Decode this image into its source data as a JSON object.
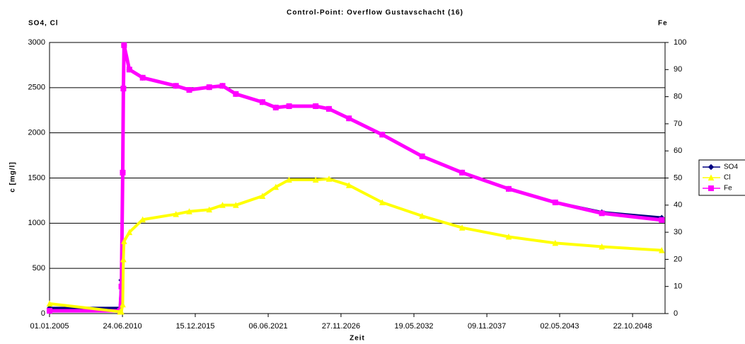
{
  "chart_data": {
    "type": "line",
    "title": "Control-Point: Overflow Gustavschacht (16)",
    "y_axis_title": "SO4, Cl",
    "y2_axis_title": "Fe",
    "y_label": "c [mg/l]",
    "x_label": "Zeit",
    "x": [
      2005,
      2010.3,
      2010.4,
      2010.5,
      2010.55,
      2010.6,
      2011,
      2012,
      2014.5,
      2015.5,
      2017,
      2018,
      2019,
      2021,
      2022,
      2023,
      2025,
      2026,
      2027.5,
      2030,
      2033,
      2036,
      2039.5,
      2043,
      2046.5,
      2051
    ],
    "series": [
      {
        "name": "SO4",
        "color": "#000080",
        "marker": "diamond",
        "values": [
          60,
          60,
          370,
          1560,
          2500,
          2970,
          2700,
          2610,
          2520,
          2475,
          2505,
          2520,
          2430,
          2340,
          2280,
          2295,
          2295,
          2265,
          2160,
          1980,
          1740,
          1560,
          1380,
          1230,
          1120,
          1060
        ]
      },
      {
        "name": "Cl",
        "color": "#ffff00",
        "marker": "triangle",
        "values": [
          110,
          20,
          20,
          100,
          600,
          800,
          900,
          1040,
          1100,
          1130,
          1150,
          1200,
          1200,
          1300,
          1400,
          1480,
          1480,
          1490,
          1420,
          1230,
          1080,
          950,
          850,
          780,
          740,
          700
        ]
      },
      {
        "name": "Fe",
        "color": "#ff00ff",
        "marker": "square",
        "axis": "y2",
        "values": [
          1,
          1,
          10,
          52,
          83,
          99,
          90,
          87,
          84,
          82.5,
          83.5,
          84,
          81,
          78,
          76,
          76.5,
          76.5,
          75.5,
          72,
          66,
          58,
          52,
          46,
          41,
          37,
          34.5
        ]
      }
    ],
    "xlim": [
      2005,
      2051.25
    ],
    "xticks": [
      {
        "value": 2005,
        "label": "01.01.2005"
      },
      {
        "value": 2010.48,
        "label": "24.06.2010"
      },
      {
        "value": 2015.95,
        "label": "15.12.2015"
      },
      {
        "value": 2021.43,
        "label": "06.06.2021"
      },
      {
        "value": 2026.9,
        "label": "27.11.2026"
      },
      {
        "value": 2032.38,
        "label": "19.05.2032"
      },
      {
        "value": 2037.86,
        "label": "09.11.2037"
      },
      {
        "value": 2043.33,
        "label": "02.05.2043"
      },
      {
        "value": 2048.81,
        "label": "22.10.2048"
      }
    ],
    "ylim": [
      0,
      3000
    ],
    "yticks": [
      0,
      500,
      1000,
      1500,
      2000,
      2500,
      3000
    ],
    "y2lim": [
      0,
      100
    ],
    "y2ticks": [
      0,
      10,
      20,
      30,
      40,
      50,
      60,
      70,
      80,
      90,
      100
    ],
    "grid": true,
    "legend": "right"
  }
}
